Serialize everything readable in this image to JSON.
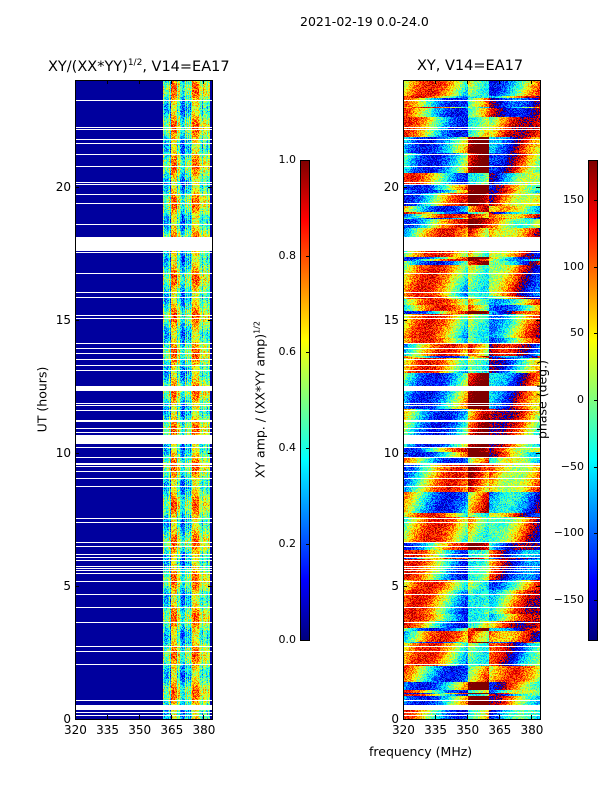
{
  "chart_data": [
    {
      "type": "heatmap",
      "suptitle": "2021-02-19 0.0-24.0",
      "title": "XY/(XX*YY)",
      "title_exp": "1/2",
      "title_suffix": ", V14=EA17",
      "ylabel": "UT (hours)",
      "xlabel": "",
      "xlim": [
        320,
        384
      ],
      "ylim": [
        0,
        24
      ],
      "xticks": [
        320,
        335,
        350,
        365,
        380
      ],
      "yticks": [
        0,
        5,
        10,
        15,
        20
      ],
      "colorbar": {
        "label": "XY amp. / (XX*YY amp)",
        "label_exp": "1/2",
        "range": [
          0,
          1
        ],
        "ticks": [
          "0.0",
          "0.2",
          "0.4",
          "0.6",
          "0.8",
          "1.0"
        ],
        "tick_values": [
          0,
          0.2,
          0.4,
          0.6,
          0.8,
          1.0
        ],
        "cmap": "jet"
      }
    },
    {
      "type": "heatmap",
      "title": "XY, V14=EA17",
      "xlabel": "frequency (MHz)",
      "xlim": [
        320,
        384
      ],
      "ylim": [
        0,
        24
      ],
      "xticks": [
        320,
        335,
        350,
        365,
        380
      ],
      "yticks": [
        0,
        5,
        10,
        15,
        20
      ],
      "colorbar": {
        "label": "phase (deg.)",
        "range": [
          -180,
          180
        ],
        "ticks": [
          "−150",
          "−100",
          "−50",
          "0",
          "50",
          "100",
          "150"
        ],
        "tick_values": [
          -150,
          -100,
          -50,
          0,
          50,
          100,
          150
        ],
        "cmap": "jet"
      }
    }
  ]
}
